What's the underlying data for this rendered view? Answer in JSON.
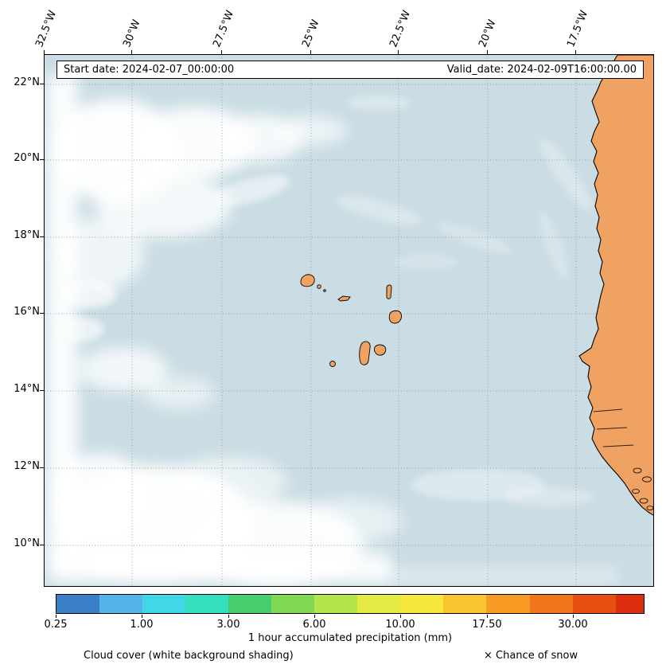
{
  "header": {
    "start_date": "Start date: 2024-02-07_00:00:00",
    "valid_date": "Valid_date: 2024-02-09T16:00:00.00"
  },
  "axes": {
    "lon_ticks": [
      "32.5°W",
      "30°W",
      "27.5°W",
      "25°W",
      "22.5°W",
      "20°W",
      "17.5°W"
    ],
    "lat_ticks": [
      "22°N",
      "20°N",
      "18°N",
      "16°N",
      "14°N",
      "12°N",
      "10°N"
    ]
  },
  "colorbar": {
    "tick_labels": [
      "0.25",
      "1.00",
      "3.00",
      "6.00",
      "10.00",
      "17.50",
      "30.00"
    ],
    "title": "1 hour accumulated precipitation (mm)",
    "segment_colors": [
      "#3a80c9",
      "#55b4e9",
      "#40d8e8",
      "#35dfc0",
      "#47cf6f",
      "#7fd952",
      "#b4e34c",
      "#e3ea45",
      "#f7e63b",
      "#f9c430",
      "#f79b24",
      "#f0751b",
      "#e54f12",
      "#dd2f0e"
    ]
  },
  "legend": {
    "cloud_cover_label": "Cloud cover (white background shading)",
    "snow_label": "× Chance of snow"
  },
  "colors": {
    "ocean": "#cadde4",
    "land": "#f0a263",
    "cloud": "#ffffff",
    "grid": "#999999"
  },
  "chart_data": {
    "type": "heatmap",
    "title": "1 hour accumulated precipitation (mm)",
    "colorbar_tick_values": [
      0.25,
      1.0,
      3.0,
      6.0,
      10.0,
      17.5,
      30.0
    ],
    "x_ticks_longitude": [
      "32.5°W",
      "30°W",
      "27.5°W",
      "25°W",
      "22.5°W",
      "20°W",
      "17.5°W"
    ],
    "y_ticks_latitude": [
      "22°N",
      "20°N",
      "18°N",
      "16°N",
      "14°N",
      "12°N",
      "10°N"
    ],
    "overlays": [
      "Cloud cover (white background shading)",
      "× Chance of snow"
    ],
    "start_date": "2024-02-07_00:00:00",
    "valid_date": "2024-02-09T16:00:00.00"
  }
}
